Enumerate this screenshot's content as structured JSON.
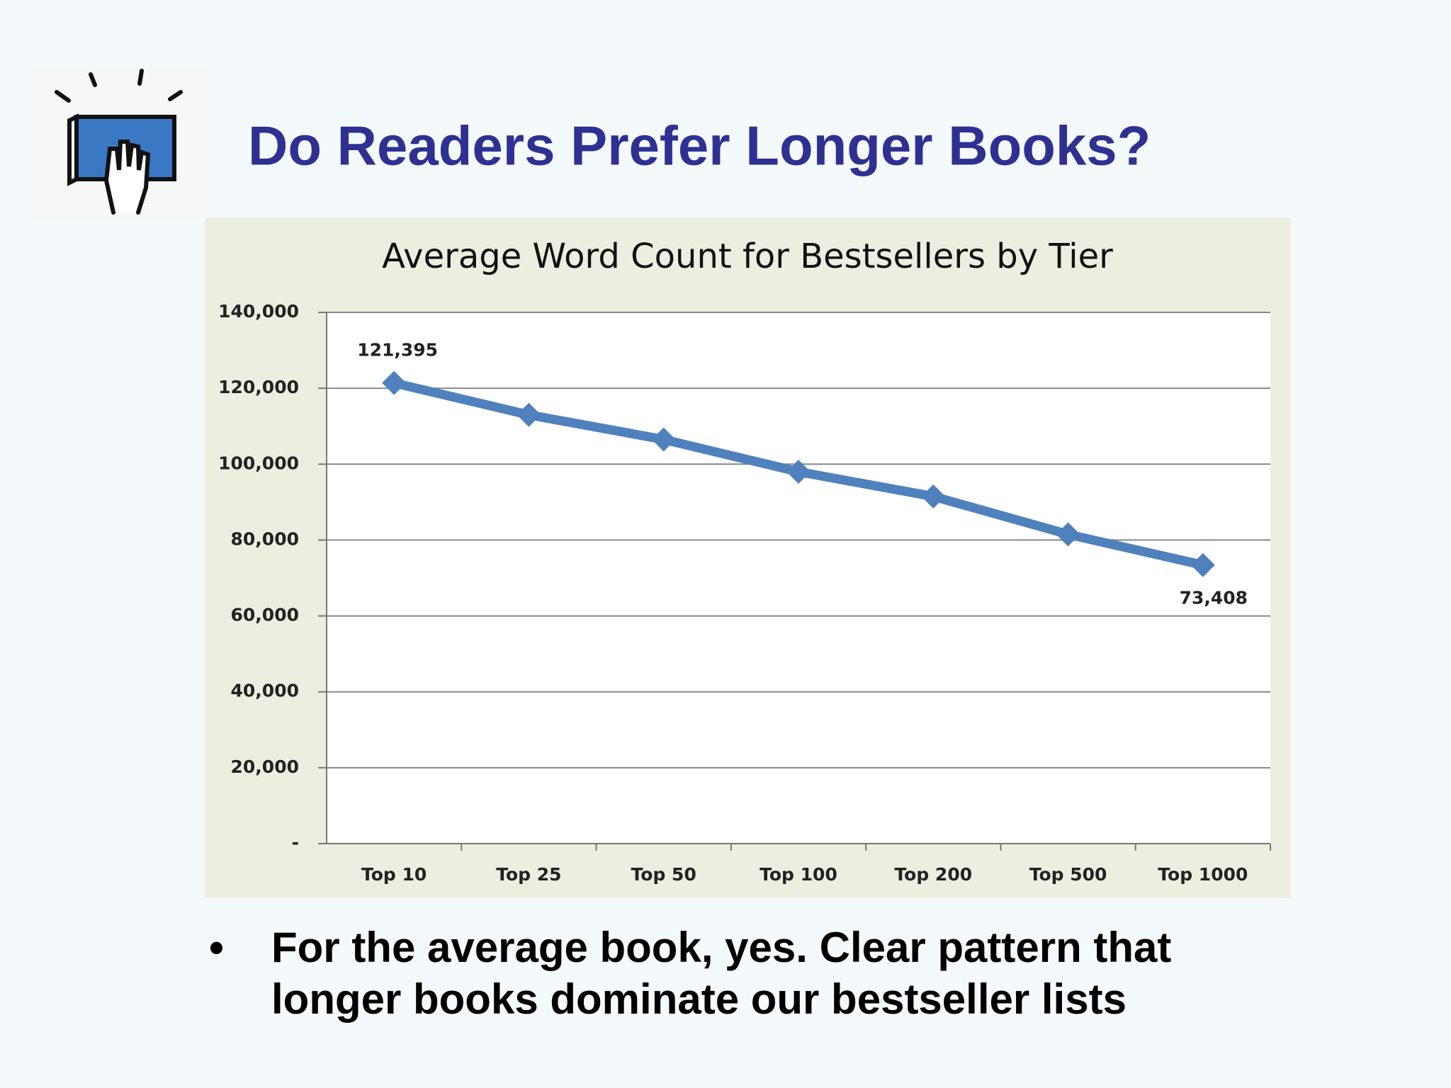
{
  "slide": {
    "title": "Do Readers Prefer Longer Books?",
    "bullet": [
      "For the average book, yes.  Clear pattern that",
      "longer books dominate our bestseller lists"
    ]
  },
  "chart_data": {
    "type": "line",
    "title": "Average Word Count for Bestsellers by Tier",
    "categories": [
      "Top 10",
      "Top 25",
      "Top 50",
      "Top 100",
      "Top 200",
      "Top 500",
      "Top 1000"
    ],
    "series": [
      {
        "name": "Average Word Count",
        "color": "#4f81bd",
        "values": [
          121395,
          113000,
          106500,
          98000,
          91500,
          81500,
          73408
        ],
        "value_labels": [
          "121,395",
          null,
          null,
          null,
          null,
          null,
          "73,408"
        ]
      }
    ],
    "ylim": [
      0,
      140000
    ],
    "yticks": [
      {
        "value": 0,
        "label": "-"
      },
      {
        "value": 20000,
        "label": "20,000"
      },
      {
        "value": 40000,
        "label": "40,000"
      },
      {
        "value": 60000,
        "label": "60,000"
      },
      {
        "value": 80000,
        "label": "80,000"
      },
      {
        "value": 100000,
        "label": "100,000"
      },
      {
        "value": 120000,
        "label": "120,000"
      },
      {
        "value": 140000,
        "label": "140,000"
      }
    ],
    "grid": true
  }
}
